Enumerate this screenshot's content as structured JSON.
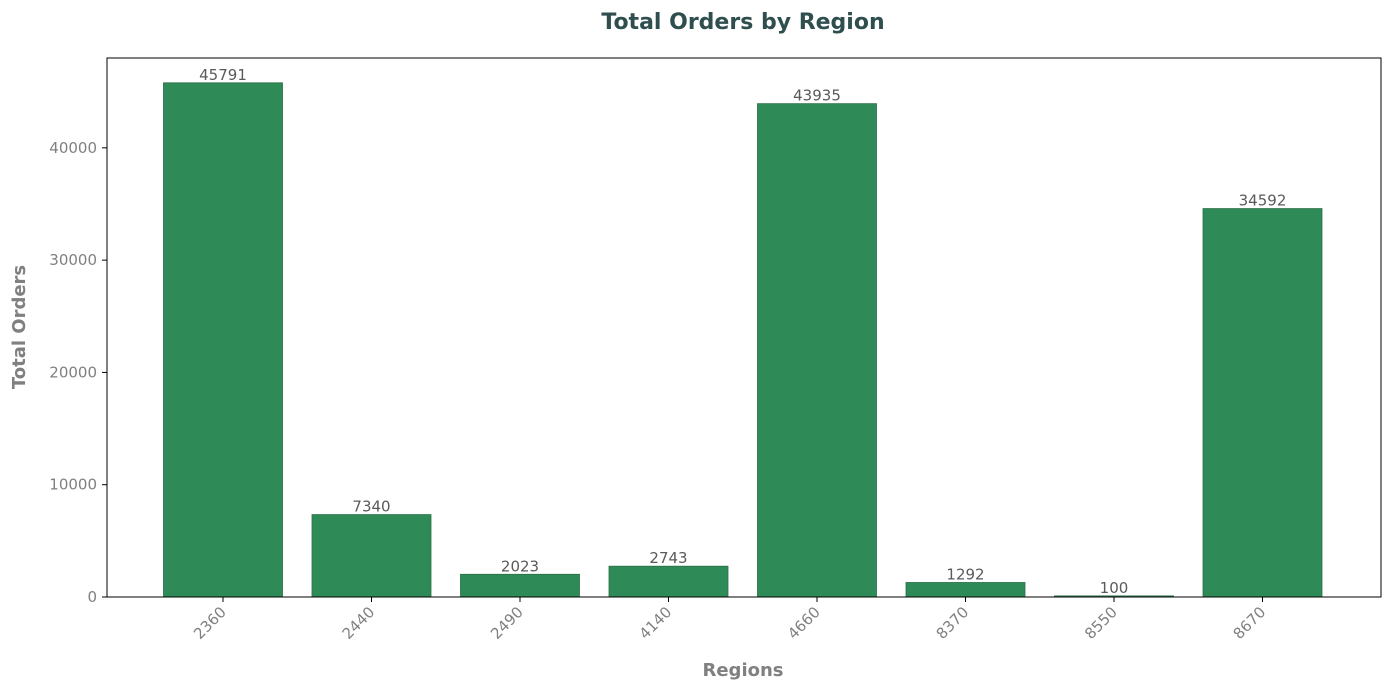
{
  "chart_data": {
    "type": "bar",
    "title": "Total Orders by Region",
    "xlabel": "Regions",
    "ylabel": "Total Orders",
    "categories": [
      "2360",
      "2440",
      "2490",
      "4140",
      "4660",
      "8370",
      "8550",
      "8670"
    ],
    "values": [
      45791,
      7340,
      2023,
      2743,
      43935,
      1292,
      100,
      34592
    ],
    "ylim": [
      0,
      48000
    ],
    "yticks": [
      0,
      10000,
      20000,
      30000,
      40000
    ],
    "ytick_labels": [
      "0",
      "10000",
      "20000",
      "30000",
      "40000"
    ],
    "grid": false,
    "legend": "none",
    "colors": {
      "bar": "#2e8b57",
      "bar_edge": "#2a6e46",
      "title": "#2f4f4f",
      "axis_label": "#808080",
      "tick_label": "#808080",
      "data_label": "#5a5a5a",
      "frame": "#000000"
    }
  }
}
